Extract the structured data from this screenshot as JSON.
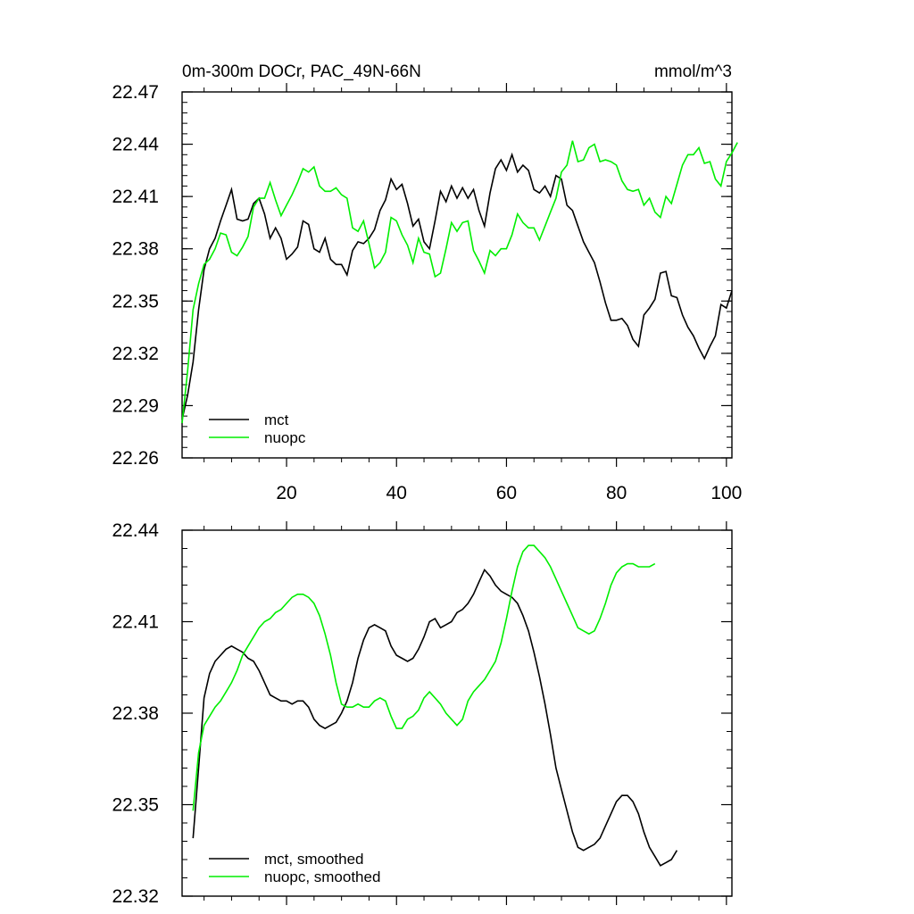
{
  "chart_data": [
    {
      "type": "line",
      "title": "0m-300m DOCr, PAC_49N-66N",
      "units": "mmol/m^3",
      "xlim": [
        1,
        101
      ],
      "ylim": [
        22.26,
        22.47
      ],
      "xticks": [
        20,
        40,
        60,
        80,
        100
      ],
      "yticks": [
        22.26,
        22.29,
        22.32,
        22.35,
        22.38,
        22.41,
        22.44,
        22.47
      ],
      "ytick_labels": [
        "22.26",
        "22.29",
        "22.32",
        "22.35",
        "22.38",
        "22.41",
        "22.44",
        "22.47"
      ],
      "xtick_labels": [
        "20",
        "40",
        "60",
        "80",
        "100"
      ],
      "legend_position": "bottom-left",
      "series": [
        {
          "name": "mct",
          "color": "#000000",
          "x0": 1,
          "values": [
            22.282,
            22.296,
            22.315,
            22.345,
            22.368,
            22.38,
            22.386,
            22.396,
            22.405,
            22.414,
            22.397,
            22.396,
            22.397,
            22.406,
            22.409,
            22.4,
            22.386,
            22.392,
            22.386,
            22.374,
            22.377,
            22.381,
            22.396,
            22.394,
            22.38,
            22.378,
            22.386,
            22.374,
            22.371,
            22.371,
            22.365,
            22.379,
            22.384,
            22.383,
            22.386,
            22.391,
            22.402,
            22.408,
            22.42,
            22.414,
            22.417,
            22.406,
            22.393,
            22.397,
            22.384,
            22.38,
            22.396,
            22.413,
            22.407,
            22.416,
            22.409,
            22.415,
            22.409,
            22.414,
            22.402,
            22.393,
            22.412,
            22.426,
            22.431,
            22.425,
            22.434,
            22.424,
            22.428,
            22.425,
            22.414,
            22.412,
            22.416,
            22.41,
            22.422,
            22.42,
            22.405,
            22.402,
            22.393,
            22.384,
            22.378,
            22.372,
            22.361,
            22.349,
            22.339,
            22.339,
            22.34,
            22.336,
            22.328,
            22.324,
            22.342,
            22.346,
            22.351,
            22.366,
            22.367,
            22.353,
            22.352,
            22.342,
            22.335,
            22.33,
            22.323,
            22.317,
            22.324,
            22.33,
            22.348,
            22.346,
            22.356
          ]
        },
        {
          "name": "nuopc",
          "color": "#00ee00",
          "x0": 1,
          "values": [
            22.28,
            22.31,
            22.345,
            22.36,
            22.371,
            22.374,
            22.38,
            22.389,
            22.388,
            22.378,
            22.376,
            22.381,
            22.387,
            22.404,
            22.409,
            22.409,
            22.418,
            22.408,
            22.399,
            22.405,
            22.411,
            22.418,
            22.426,
            22.424,
            22.427,
            22.416,
            22.413,
            22.413,
            22.415,
            22.411,
            22.409,
            22.392,
            22.39,
            22.396,
            22.383,
            22.369,
            22.372,
            22.378,
            22.398,
            22.396,
            22.388,
            22.382,
            22.372,
            22.386,
            22.378,
            22.377,
            22.364,
            22.366,
            22.38,
            22.395,
            22.39,
            22.395,
            22.396,
            22.379,
            22.373,
            22.366,
            22.379,
            22.376,
            22.38,
            22.38,
            22.388,
            22.4,
            22.395,
            22.392,
            22.392,
            22.385,
            22.393,
            22.401,
            22.409,
            22.424,
            22.428,
            22.442,
            22.43,
            22.431,
            22.438,
            22.44,
            22.43,
            22.431,
            22.43,
            22.428,
            22.419,
            22.414,
            22.413,
            22.414,
            22.405,
            22.409,
            22.401,
            22.398,
            22.41,
            22.406,
            22.417,
            22.428,
            22.434,
            22.434,
            22.438,
            22.429,
            22.43,
            22.42,
            22.416,
            22.43,
            22.435,
            22.441
          ]
        }
      ]
    },
    {
      "type": "line",
      "xlim": [
        1,
        101
      ],
      "ylim": [
        22.32,
        22.44
      ],
      "xticks": [
        20,
        40,
        60,
        80,
        100
      ],
      "yticks": [
        22.32,
        22.35,
        22.38,
        22.41,
        22.44
      ],
      "ytick_labels": [
        "22.32",
        "22.35",
        "22.38",
        "22.41",
        "22.44"
      ],
      "legend_position": "bottom-left",
      "series": [
        {
          "name": "mct, smoothed",
          "color": "#000000",
          "x0": 3,
          "values": [
            22.339,
            22.362,
            22.385,
            22.393,
            22.397,
            22.399,
            22.401,
            22.402,
            22.401,
            22.4,
            22.398,
            22.397,
            22.394,
            22.39,
            22.386,
            22.385,
            22.384,
            22.384,
            22.383,
            22.384,
            22.384,
            22.382,
            22.378,
            22.376,
            22.375,
            22.376,
            22.377,
            22.38,
            22.384,
            22.39,
            22.398,
            22.404,
            22.408,
            22.409,
            22.408,
            22.407,
            22.402,
            22.399,
            22.398,
            22.397,
            22.398,
            22.401,
            22.405,
            22.41,
            22.411,
            22.408,
            22.409,
            22.41,
            22.413,
            22.414,
            22.416,
            22.419,
            22.423,
            22.427,
            22.425,
            22.422,
            22.42,
            22.419,
            22.418,
            22.416,
            22.412,
            22.407,
            22.4,
            22.392,
            22.383,
            22.373,
            22.362,
            22.355,
            22.348,
            22.341,
            22.336,
            22.335,
            22.336,
            22.337,
            22.339,
            22.343,
            22.347,
            22.351,
            22.353,
            22.353,
            22.351,
            22.347,
            22.341,
            22.336,
            22.333,
            22.33,
            22.331,
            22.332,
            22.335
          ]
        },
        {
          "name": "nuopc, smoothed",
          "color": "#00ee00",
          "x0": 3,
          "values": [
            22.348,
            22.367,
            22.376,
            22.379,
            22.382,
            22.384,
            22.387,
            22.39,
            22.394,
            22.399,
            22.402,
            22.405,
            22.408,
            22.41,
            22.411,
            22.413,
            22.414,
            22.416,
            22.418,
            22.419,
            22.419,
            22.418,
            22.416,
            22.412,
            22.406,
            22.399,
            22.39,
            22.383,
            22.382,
            22.382,
            22.383,
            22.382,
            22.382,
            22.384,
            22.385,
            22.384,
            22.379,
            22.375,
            22.375,
            22.378,
            22.379,
            22.381,
            22.385,
            22.387,
            22.385,
            22.383,
            22.38,
            22.378,
            22.376,
            22.378,
            22.384,
            22.387,
            22.389,
            22.391,
            22.394,
            22.397,
            22.403,
            22.411,
            22.42,
            22.428,
            22.433,
            22.435,
            22.435,
            22.433,
            22.431,
            22.428,
            22.424,
            22.42,
            22.416,
            22.412,
            22.408,
            22.407,
            22.406,
            22.407,
            22.411,
            22.416,
            22.422,
            22.426,
            22.428,
            22.429,
            22.429,
            22.428,
            22.428,
            22.428,
            22.429
          ]
        }
      ]
    }
  ]
}
